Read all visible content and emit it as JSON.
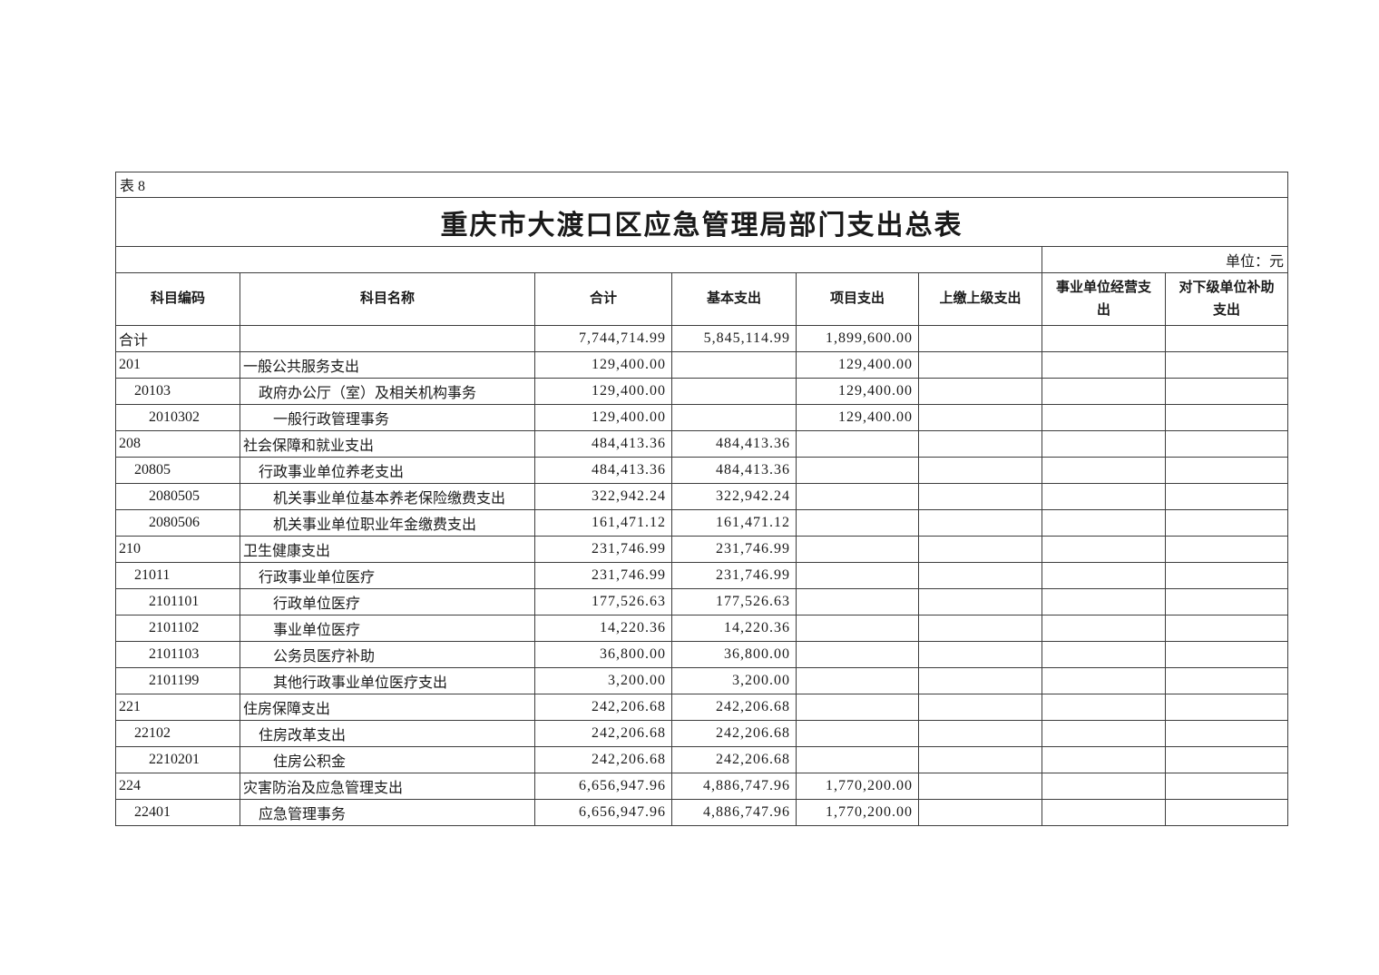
{
  "document": {
    "table_label": "表 8",
    "title": "重庆市大渡口区应急管理局部门支出总表",
    "unit_note": "单位：元"
  },
  "colors": {
    "text": "#1a1a1a",
    "border": "#3d3d3d",
    "background": "#ffffff"
  },
  "table": {
    "columns": [
      {
        "key": "code",
        "label": "科目编码"
      },
      {
        "key": "name",
        "label": "科目名称"
      },
      {
        "key": "total",
        "label": "合计"
      },
      {
        "key": "basic",
        "label": "基本支出"
      },
      {
        "key": "project",
        "label": "项目支出"
      },
      {
        "key": "upper",
        "label": "上缴上级支出"
      },
      {
        "key": "operating",
        "label": "事业单位经营支出"
      },
      {
        "key": "subsidy",
        "label": "对下级单位补助支出"
      }
    ],
    "rows": [
      {
        "level": 0,
        "code": "合计",
        "name": "",
        "total": "7,744,714.99",
        "basic": "5,845,114.99",
        "project": "1,899,600.00",
        "upper": "",
        "operating": "",
        "subsidy": ""
      },
      {
        "level": 1,
        "code": "201",
        "name": "一般公共服务支出",
        "total": "129,400.00",
        "basic": "",
        "project": "129,400.00",
        "upper": "",
        "operating": "",
        "subsidy": ""
      },
      {
        "level": 2,
        "code": "20103",
        "name": "政府办公厅（室）及相关机构事务",
        "total": "129,400.00",
        "basic": "",
        "project": "129,400.00",
        "upper": "",
        "operating": "",
        "subsidy": ""
      },
      {
        "level": 3,
        "code": "2010302",
        "name": "一般行政管理事务",
        "total": "129,400.00",
        "basic": "",
        "project": "129,400.00",
        "upper": "",
        "operating": "",
        "subsidy": ""
      },
      {
        "level": 1,
        "code": "208",
        "name": "社会保障和就业支出",
        "total": "484,413.36",
        "basic": "484,413.36",
        "project": "",
        "upper": "",
        "operating": "",
        "subsidy": ""
      },
      {
        "level": 2,
        "code": "20805",
        "name": "行政事业单位养老支出",
        "total": "484,413.36",
        "basic": "484,413.36",
        "project": "",
        "upper": "",
        "operating": "",
        "subsidy": ""
      },
      {
        "level": 3,
        "code": "2080505",
        "name": "机关事业单位基本养老保险缴费支出",
        "total": "322,942.24",
        "basic": "322,942.24",
        "project": "",
        "upper": "",
        "operating": "",
        "subsidy": ""
      },
      {
        "level": 3,
        "code": "2080506",
        "name": "机关事业单位职业年金缴费支出",
        "total": "161,471.12",
        "basic": "161,471.12",
        "project": "",
        "upper": "",
        "operating": "",
        "subsidy": ""
      },
      {
        "level": 1,
        "code": "210",
        "name": "卫生健康支出",
        "total": "231,746.99",
        "basic": "231,746.99",
        "project": "",
        "upper": "",
        "operating": "",
        "subsidy": ""
      },
      {
        "level": 2,
        "code": "21011",
        "name": "行政事业单位医疗",
        "total": "231,746.99",
        "basic": "231,746.99",
        "project": "",
        "upper": "",
        "operating": "",
        "subsidy": ""
      },
      {
        "level": 3,
        "code": "2101101",
        "name": "行政单位医疗",
        "total": "177,526.63",
        "basic": "177,526.63",
        "project": "",
        "upper": "",
        "operating": "",
        "subsidy": ""
      },
      {
        "level": 3,
        "code": "2101102",
        "name": "事业单位医疗",
        "total": "14,220.36",
        "basic": "14,220.36",
        "project": "",
        "upper": "",
        "operating": "",
        "subsidy": ""
      },
      {
        "level": 3,
        "code": "2101103",
        "name": "公务员医疗补助",
        "total": "36,800.00",
        "basic": "36,800.00",
        "project": "",
        "upper": "",
        "operating": "",
        "subsidy": ""
      },
      {
        "level": 3,
        "code": "2101199",
        "name": "其他行政事业单位医疗支出",
        "total": "3,200.00",
        "basic": "3,200.00",
        "project": "",
        "upper": "",
        "operating": "",
        "subsidy": ""
      },
      {
        "level": 1,
        "code": "221",
        "name": "住房保障支出",
        "total": "242,206.68",
        "basic": "242,206.68",
        "project": "",
        "upper": "",
        "operating": "",
        "subsidy": ""
      },
      {
        "level": 2,
        "code": "22102",
        "name": "住房改革支出",
        "total": "242,206.68",
        "basic": "242,206.68",
        "project": "",
        "upper": "",
        "operating": "",
        "subsidy": ""
      },
      {
        "level": 3,
        "code": "2210201",
        "name": "住房公积金",
        "total": "242,206.68",
        "basic": "242,206.68",
        "project": "",
        "upper": "",
        "operating": "",
        "subsidy": ""
      },
      {
        "level": 1,
        "code": "224",
        "name": "灾害防治及应急管理支出",
        "total": "6,656,947.96",
        "basic": "4,886,747.96",
        "project": "1,770,200.00",
        "upper": "",
        "operating": "",
        "subsidy": ""
      },
      {
        "level": 2,
        "code": "22401",
        "name": "应急管理事务",
        "total": "6,656,947.96",
        "basic": "4,886,747.96",
        "project": "1,770,200.00",
        "upper": "",
        "operating": "",
        "subsidy": ""
      }
    ]
  }
}
